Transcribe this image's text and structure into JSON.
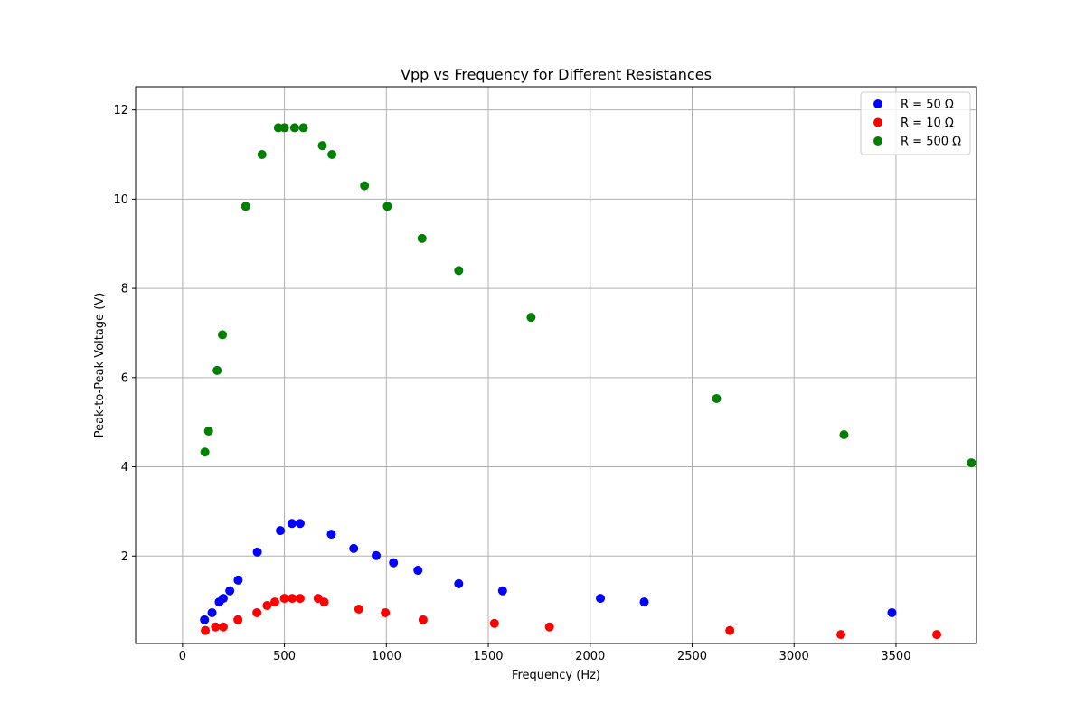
{
  "chart_data": {
    "type": "scatter",
    "title": "Vpp vs Frequency for Different Resistances",
    "xlabel": "Frequency (Hz)",
    "ylabel": "Peak-to-Peak Voltage (V)",
    "xlim": [
      -230,
      3895
    ],
    "ylim": [
      0.04,
      12.52
    ],
    "xticks": [
      0,
      500,
      1000,
      1500,
      2000,
      2500,
      3000,
      3500
    ],
    "xtick_labels": [
      "0",
      "500",
      "1000",
      "1500",
      "2000",
      "2500",
      "3000",
      "3500"
    ],
    "yticks": [
      2,
      4,
      6,
      8,
      10,
      12
    ],
    "ytick_labels": [
      "2",
      "4",
      "6",
      "8",
      "10",
      "12"
    ],
    "grid": true,
    "legend_position": "top-right",
    "series": [
      {
        "name": "R = 50 Ω",
        "color": "#0000ff",
        "x": [
          108,
          145,
          180,
          200,
          232,
          273,
          367,
          480,
          537,
          577,
          730,
          840,
          950,
          1035,
          1155,
          1355,
          1570,
          2050,
          2265,
          3480
        ],
        "y": [
          0.57,
          0.73,
          0.97,
          1.05,
          1.22,
          1.46,
          2.09,
          2.57,
          2.73,
          2.73,
          2.49,
          2.17,
          2.01,
          1.85,
          1.68,
          1.38,
          1.22,
          1.05,
          0.97,
          0.73
        ]
      },
      {
        "name": "R = 10 Ω",
        "color": "#ff0000",
        "x": [
          112,
          162,
          200,
          272,
          365,
          415,
          453,
          500,
          538,
          577,
          665,
          695,
          865,
          995,
          1180,
          1530,
          1800,
          2685,
          3230,
          3700
        ],
        "y": [
          0.33,
          0.41,
          0.41,
          0.57,
          0.73,
          0.89,
          0.97,
          1.05,
          1.05,
          1.05,
          1.05,
          0.97,
          0.81,
          0.73,
          0.57,
          0.49,
          0.41,
          0.33,
          0.24,
          0.24
        ]
      },
      {
        "name": "R = 500 Ω",
        "color": "#008000",
        "x": [
          110,
          128,
          170,
          196,
          310,
          390,
          470,
          500,
          550,
          593,
          686,
          733,
          893,
          1005,
          1175,
          1355,
          1710,
          2620,
          3245,
          3870
        ],
        "y": [
          4.33,
          4.8,
          6.16,
          6.96,
          9.84,
          11.0,
          11.6,
          11.6,
          11.6,
          11.6,
          11.2,
          11.0,
          10.3,
          9.84,
          9.12,
          8.4,
          7.35,
          5.53,
          4.72,
          4.09
        ]
      }
    ]
  }
}
